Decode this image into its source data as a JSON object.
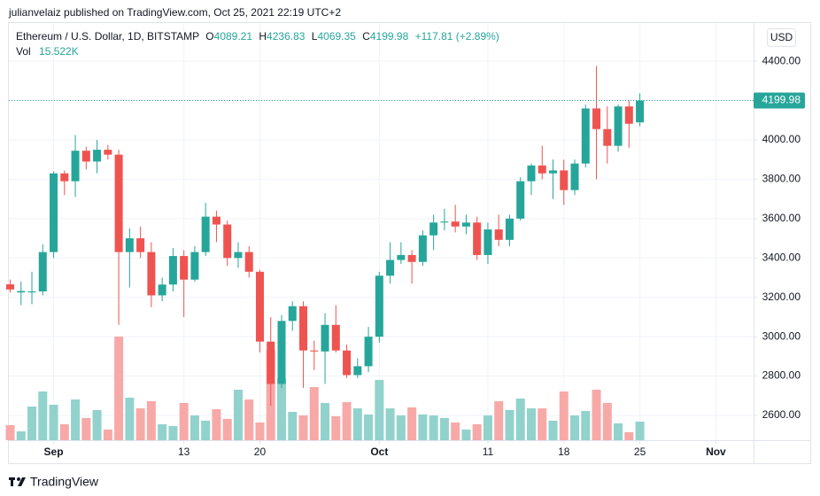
{
  "header": {
    "publisher": "julianvelaiz published on TradingView.com, Oct 25, 2021 22:19 UTC+2"
  },
  "footer": {
    "brand": "TradingView"
  },
  "legend": {
    "symbol": "Ethereum / U.S. Dollar, 1D, BITSTAMP",
    "open_label": "O",
    "high_label": "H",
    "low_label": "L",
    "close_label": "C",
    "change": "+117.81 (+2.89%)",
    "volume_label": "Vol",
    "volume_value": "15.522K"
  },
  "currency": "USD",
  "chart_data": {
    "type": "candlestick",
    "up_color": "#26a69a",
    "down_color": "#ef5350",
    "volume_up_color": "#92d2cc",
    "volume_down_color": "#f7a9a7",
    "grid": true,
    "open": [
      3266,
      3225,
      3225,
      3230,
      3430,
      3830,
      3790,
      3945,
      3890,
      3950,
      3925,
      3430,
      3500,
      3430,
      3210,
      3265,
      3410,
      3290,
      3430,
      3610,
      3570,
      3400,
      3430,
      3330,
      2975,
      2760,
      3080,
      3155,
      2930,
      2925,
      3060,
      2930,
      2805,
      2850,
      3000,
      3310,
      3390,
      3415,
      3380,
      3515,
      3580,
      3585,
      3560,
      3580,
      3415,
      3545,
      3492,
      3600,
      3790,
      3870,
      3830,
      3845,
      3745,
      3880,
      4160,
      4055,
      3970,
      4170,
      4089.21
    ],
    "high": [
      3290,
      3280,
      3330,
      3470,
      3840,
      3845,
      4025,
      3965,
      4000,
      3975,
      3950,
      3550,
      3560,
      3480,
      3300,
      3450,
      3440,
      3460,
      3680,
      3640,
      3590,
      3480,
      3460,
      3340,
      3100,
      3110,
      3180,
      3180,
      2980,
      3120,
      3160,
      2960,
      2890,
      3050,
      3330,
      3480,
      3480,
      3440,
      3540,
      3620,
      3650,
      3670,
      3620,
      3610,
      3580,
      3620,
      3620,
      3810,
      3880,
      3970,
      3900,
      3900,
      3900,
      4180,
      4375,
      4170,
      4180,
      4200,
      4236.83
    ],
    "low": [
      3225,
      3160,
      3165,
      3210,
      3400,
      3720,
      3710,
      3850,
      3830,
      3900,
      3060,
      3250,
      3400,
      3150,
      3180,
      3230,
      3100,
      3280,
      3410,
      3480,
      3360,
      3350,
      3300,
      2920,
      2650,
      2740,
      3030,
      2740,
      2830,
      2760,
      2920,
      2790,
      2790,
      2820,
      2970,
      3270,
      3370,
      3270,
      3360,
      3440,
      3540,
      3530,
      3520,
      3390,
      3370,
      3460,
      3460,
      3590,
      3720,
      3800,
      3700,
      3670,
      3720,
      3860,
      3800,
      3880,
      3940,
      3960,
      4069.35
    ],
    "close": [
      3240,
      3232,
      3230,
      3430,
      3830,
      3790,
      3945,
      3890,
      3950,
      3925,
      3430,
      3500,
      3430,
      3210,
      3265,
      3410,
      3290,
      3430,
      3610,
      3570,
      3400,
      3430,
      3330,
      2975,
      2760,
      3080,
      3155,
      2930,
      2925,
      3060,
      2930,
      2805,
      2850,
      3000,
      3310,
      3390,
      3415,
      3380,
      3515,
      3580,
      3585,
      3560,
      3580,
      3415,
      3545,
      3492,
      3600,
      3790,
      3870,
      3830,
      3845,
      3745,
      3880,
      4160,
      4055,
      3970,
      4170,
      4082,
      4199.98
    ],
    "volume": [
      12.6,
      7.4,
      28.1,
      40.7,
      29.6,
      13.3,
      34.0,
      18.5,
      25.2,
      8.9,
      86.6,
      35.5,
      26.6,
      32.6,
      13.3,
      11.8,
      31.1,
      20.7,
      16.3,
      25.9,
      17.8,
      42.2,
      34.0,
      14.8,
      75.5,
      51.8,
      23.7,
      20.7,
      44.4,
      31.1,
      20.0,
      31.8,
      26.6,
      21.5,
      50.3,
      26.6,
      20.7,
      27.4,
      21.5,
      20.7,
      18.5,
      14.8,
      8.9,
      13.3,
      20.7,
      32.6,
      25.2,
      34.8,
      26.6,
      26.6,
      16.3,
      40.7,
      20.7,
      24.4,
      42.2,
      31.1,
      14.1,
      6.7,
      15.522
    ],
    "ylim": [
      2474,
      4594
    ],
    "yticks": [
      {
        "value": 2600,
        "label": "2600.00"
      },
      {
        "value": 2800,
        "label": "2800.00"
      },
      {
        "value": 3000,
        "label": "3000.00"
      },
      {
        "value": 3200,
        "label": "3200.00"
      },
      {
        "value": 3400,
        "label": "3400.00"
      },
      {
        "value": 3600,
        "label": "3600.00"
      },
      {
        "value": 3800,
        "label": "3800.00"
      },
      {
        "value": 4000,
        "label": "4000.00"
      },
      {
        "value": 4200,
        "label": "4200.00"
      },
      {
        "value": 4400,
        "label": "4400.00"
      }
    ],
    "y2lim": [
      0,
      348.5
    ],
    "xticks": [
      {
        "value": 4,
        "label": "Sep"
      },
      {
        "value": 16,
        "label": "13"
      },
      {
        "value": 23,
        "label": "20"
      },
      {
        "value": 34,
        "label": "Oct"
      },
      {
        "value": 44,
        "label": "11"
      },
      {
        "value": 51,
        "label": "18"
      },
      {
        "value": 58,
        "label": "25"
      },
      {
        "value": 65,
        "label": "Nov"
      }
    ]
  }
}
